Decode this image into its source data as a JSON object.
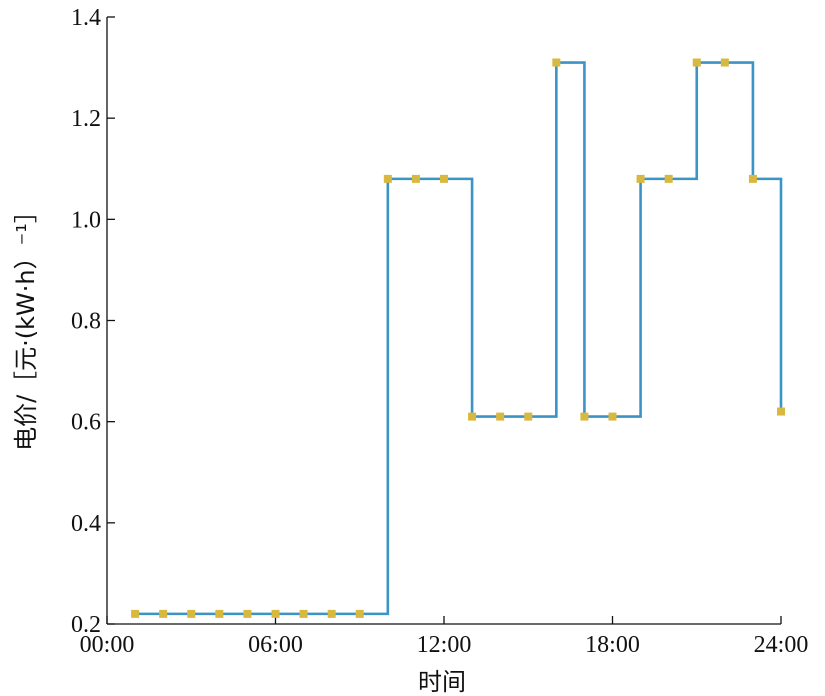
{
  "chart_data": {
    "type": "line",
    "step": true,
    "title": "",
    "xlabel": "时间",
    "ylabel": "电价/［元·(kW·h）⁻¹］",
    "xlim": [
      0,
      24
    ],
    "ylim": [
      0.2,
      1.4
    ],
    "x_ticks": [
      {
        "value": 0,
        "label": "00:00"
      },
      {
        "value": 6,
        "label": "06:00"
      },
      {
        "value": 12,
        "label": "12:00"
      },
      {
        "value": 18,
        "label": "18:00"
      },
      {
        "value": 24,
        "label": "24:00"
      }
    ],
    "y_ticks": [
      {
        "value": 0.2,
        "label": "0.2"
      },
      {
        "value": 0.4,
        "label": "0.4"
      },
      {
        "value": 0.6,
        "label": "0.6"
      },
      {
        "value": 0.8,
        "label": "0.8"
      },
      {
        "value": 1.0,
        "label": "1.0"
      },
      {
        "value": 1.2,
        "label": "1.2"
      },
      {
        "value": 1.4,
        "label": "1.4"
      }
    ],
    "grid": false,
    "series": [
      {
        "color": "#3a94c4",
        "marker_color": "#d9b83f",
        "x": [
          1,
          2,
          3,
          4,
          5,
          6,
          7,
          8,
          9,
          10,
          11,
          12,
          13,
          14,
          15,
          16,
          17,
          18,
          19,
          20,
          21,
          22,
          23,
          24
        ],
        "values": [
          0.22,
          0.22,
          0.22,
          0.22,
          0.22,
          0.22,
          0.22,
          0.22,
          0.22,
          1.08,
          1.08,
          1.08,
          0.61,
          0.61,
          0.61,
          1.31,
          0.61,
          0.61,
          1.08,
          1.08,
          1.31,
          1.31,
          1.08,
          0.62
        ]
      }
    ]
  }
}
